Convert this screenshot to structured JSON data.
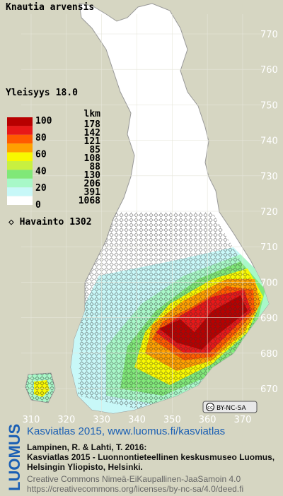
{
  "title": "Knautia arvensis",
  "frequency": {
    "label": "Yleisyys",
    "value": "18.0"
  },
  "legend": {
    "scale": [
      100,
      80,
      60,
      40,
      20,
      0
    ],
    "count_header": "lkm",
    "counts": [
      178,
      142,
      121,
      85,
      108,
      88,
      130,
      206,
      391,
      1068
    ],
    "colors": [
      "#b80000",
      "#e81818",
      "#ff5a00",
      "#ffa000",
      "#f8f800",
      "#c8f040",
      "#80e878",
      "#a8f8c8",
      "#c8f8f8",
      "#ffffff"
    ]
  },
  "observations": {
    "label": "Havainto",
    "count": 1302
  },
  "grid": {
    "y_labels": [
      770,
      760,
      750,
      740,
      730,
      720,
      710,
      700,
      690,
      680,
      670
    ],
    "x_labels": [
      310,
      320,
      330,
      340,
      350,
      360,
      370
    ]
  },
  "license_badge": "BY-NC-SA",
  "footer": {
    "brand": "LUOMUS",
    "headline": "Kasviatlas 2015, www.luomus.fi/kasviatlas",
    "citation": [
      "Lampinen, R. & Lahti, T. 2016:",
      "Kasviatlas 2015 - Luonnontieteellinen keskusmuseo Luomus,",
      "Helsingin Yliopisto, Helsinki."
    ],
    "license": [
      "Creative Commons Nimeä-EiKaupallinen-JaaSamoin 4.0",
      "https://creativecommons.org/licenses/by-nc-sa/4.0/deed.fi"
    ]
  }
}
